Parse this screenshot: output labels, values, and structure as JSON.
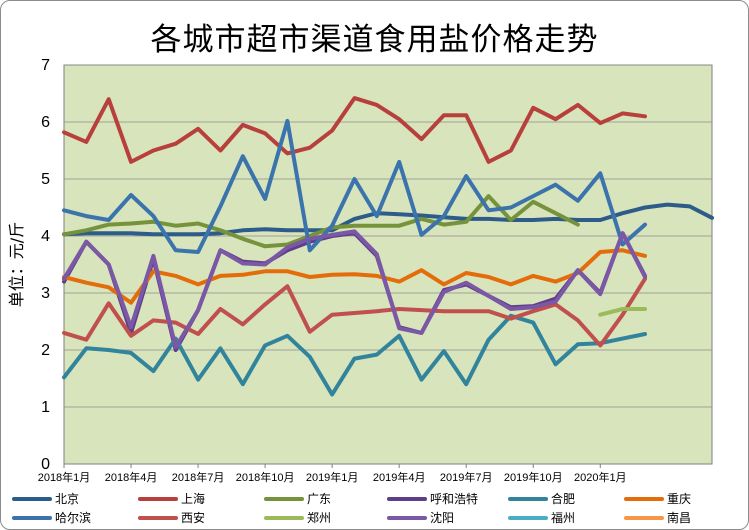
{
  "chart_data": {
    "type": "line",
    "title": "各城市超市渠道食用盐价格走势",
    "ylabel": "单位：元/斤",
    "xlabel": "",
    "ylim": [
      0,
      7
    ],
    "yticks": [
      "0",
      "1",
      "2",
      "3",
      "4",
      "5",
      "6",
      "7"
    ],
    "x_tick_labels": [
      "2018年1月",
      "2018年4月",
      "2018年7月",
      "2018年10月",
      "2019年1月",
      "2019年4月",
      "2019年7月",
      "2019年10月",
      "2020年1月"
    ],
    "x_tick_every": 3,
    "grid": true,
    "legend_position": "bottom",
    "background": "#d8e4bc",
    "series": [
      {
        "name": "北京",
        "color": "#2e5c8a",
        "values": [
          4.03,
          4.05,
          4.05,
          4.05,
          4.03,
          4.03,
          4.03,
          4.05,
          4.1,
          4.12,
          4.1,
          4.1,
          4.1,
          4.3,
          4.4,
          4.38,
          4.36,
          4.33,
          4.3,
          4.3,
          4.28,
          4.28,
          4.3,
          4.28,
          4.28,
          4.4,
          4.5,
          4.55,
          4.52,
          4.32
        ]
      },
      {
        "name": "上海",
        "color": "#b7403c",
        "values": [
          5.82,
          5.65,
          6.4,
          5.3,
          5.5,
          5.62,
          5.88,
          5.5,
          5.95,
          5.8,
          5.45,
          5.55,
          5.85,
          6.42,
          6.3,
          6.05,
          5.7,
          6.12,
          6.12,
          5.3,
          5.5,
          6.25,
          6.05,
          6.3,
          5.98,
          6.15,
          6.1
        ]
      },
      {
        "name": "广东",
        "color": "#76933c",
        "values": [
          4.03,
          4.1,
          4.2,
          4.22,
          4.25,
          4.18,
          4.22,
          4.1,
          3.95,
          3.82,
          3.85,
          4.0,
          4.15,
          4.18,
          4.18,
          4.18,
          4.3,
          4.2,
          4.25,
          4.7,
          4.28,
          4.6,
          4.4,
          4.2
        ]
      },
      {
        "name": "呼和浩特",
        "color": "#5f3d8a",
        "values": [
          3.2,
          3.9,
          3.5,
          2.3,
          3.6,
          2.0,
          2.7,
          3.75,
          3.55,
          3.52,
          3.75,
          3.9,
          4.0,
          4.05,
          3.65,
          2.4,
          2.3,
          3.05,
          3.15,
          2.95,
          2.75,
          2.77,
          2.9,
          3.4,
          3.0,
          4.05,
          3.3
        ]
      },
      {
        "name": "合肥",
        "color": "#31849b",
        "values": [
          1.52,
          2.03,
          2.0,
          1.95,
          1.63,
          2.2,
          1.48,
          2.03,
          1.4,
          2.08,
          2.25,
          1.88,
          1.22,
          1.85,
          1.92,
          2.25,
          1.48,
          1.98,
          1.4,
          2.18,
          2.6,
          2.48,
          1.75,
          2.1,
          2.12,
          2.2,
          2.28
        ]
      },
      {
        "name": "重庆",
        "color": "#e46c0a",
        "values": [
          3.28,
          3.18,
          3.1,
          2.83,
          3.38,
          3.3,
          3.15,
          3.3,
          3.32,
          3.38,
          3.38,
          3.28,
          3.32,
          3.33,
          3.3,
          3.2,
          3.4,
          3.15,
          3.35,
          3.28,
          3.15,
          3.3,
          3.2,
          3.35,
          3.72,
          3.75,
          3.65
        ]
      },
      {
        "name": "哈尔滨",
        "color": "#3b73ad",
        "values": [
          4.45,
          4.35,
          4.28,
          4.72,
          4.35,
          3.75,
          3.72,
          4.52,
          5.4,
          4.65,
          6.02,
          3.75,
          4.18,
          5.0,
          4.35,
          5.3,
          4.02,
          4.35,
          5.05,
          4.45,
          4.5,
          4.7,
          4.9,
          4.62,
          5.1,
          3.85,
          4.2
        ]
      },
      {
        "name": "西安",
        "color": "#c0504d",
        "values": [
          2.3,
          2.18,
          2.82,
          2.25,
          2.52,
          2.48,
          2.28,
          2.72,
          2.45,
          2.8,
          3.12,
          2.32,
          2.62,
          2.65,
          2.68,
          2.72,
          2.7,
          2.68,
          2.68,
          2.68,
          2.55,
          2.68,
          2.8,
          2.52,
          2.08,
          2.62,
          3.25
        ]
      },
      {
        "name": "郑州",
        "color": "#9bbb59",
        "values": [
          null,
          null,
          null,
          null,
          null,
          null,
          null,
          null,
          null,
          null,
          null,
          null,
          null,
          null,
          null,
          null,
          null,
          null,
          null,
          null,
          null,
          null,
          null,
          null,
          2.62,
          2.72,
          2.72
        ]
      },
      {
        "name": "沈阳",
        "color": "#7a58a5",
        "values": [
          3.25,
          3.9,
          3.5,
          2.4,
          3.65,
          2.05,
          2.7,
          3.75,
          3.52,
          3.5,
          3.8,
          3.95,
          4.02,
          4.08,
          3.68,
          2.38,
          2.3,
          3.02,
          3.18,
          2.95,
          2.72,
          2.75,
          2.85,
          3.4,
          2.98,
          4.05,
          3.28
        ]
      },
      {
        "name": "福州",
        "color": "#4bacc6",
        "values": [
          null,
          null,
          null,
          null,
          null,
          null,
          null,
          null,
          null,
          null,
          null,
          null,
          null,
          null,
          null,
          null,
          null,
          null,
          null,
          null,
          null,
          null,
          null,
          null,
          null,
          null,
          null
        ]
      },
      {
        "name": "南昌",
        "color": "#f79646",
        "values": [
          null,
          null,
          null,
          null,
          null,
          null,
          null,
          null,
          null,
          null,
          null,
          null,
          null,
          null,
          null,
          null,
          null,
          null,
          null,
          null,
          null,
          null,
          null,
          null,
          null,
          null,
          null
        ]
      }
    ]
  }
}
